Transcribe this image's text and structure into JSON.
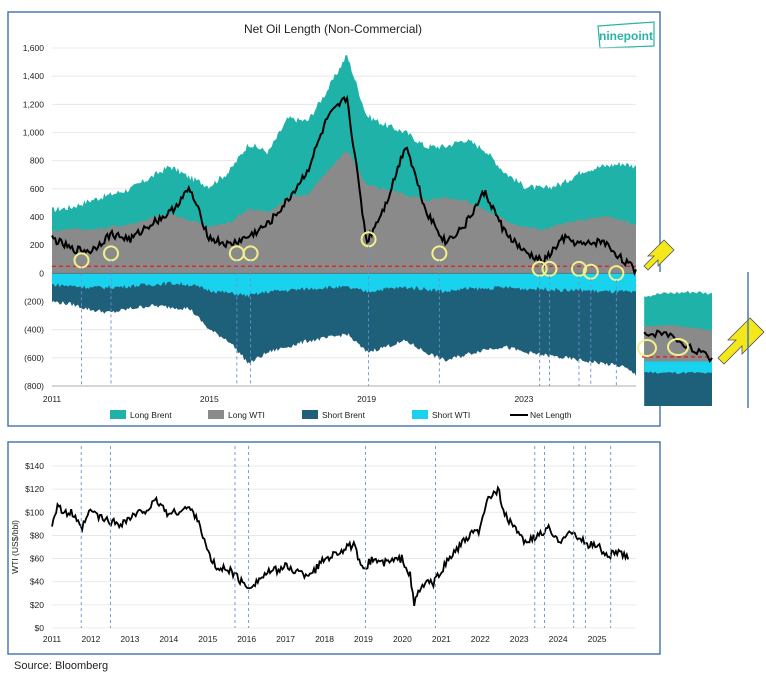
{
  "source": "Source: Bloomberg",
  "brand": {
    "logo_text": "ninepoint",
    "color": "#2bb3a8"
  },
  "colors": {
    "long_brent": "#1fb2a8",
    "long_wti": "#8a8a8a",
    "short_brent": "#1e5f7a",
    "short_wti": "#19d3ee",
    "net_length": "#000000",
    "highlight_circle": "#f2ef8c",
    "dashed_zero": "#d8262b",
    "panel_border": "#4a7ab0",
    "arrow": "#f4e81a"
  },
  "chart_data": [
    {
      "type": "area",
      "title": "Net Oil Length (Non-Commercial)",
      "xlabel": "",
      "ylabel": "",
      "x_range": [
        2011,
        2025.85
      ],
      "x_ticks": [
        2011,
        2015,
        2019,
        2023
      ],
      "ylim": [
        -800,
        1600
      ],
      "y_ticks": [
        -800,
        -600,
        -400,
        -200,
        0,
        200,
        400,
        600,
        800,
        1000,
        1200,
        1400,
        1600
      ],
      "y_tick_labels": [
        "(800)",
        "(600)",
        "(400)",
        "(200)",
        "0",
        "200",
        "400",
        "600",
        "800",
        "1,000",
        "1,200",
        "1,400",
        "1,600"
      ],
      "zero_line_value": 50,
      "legend": [
        "Long Brent",
        "Long WTI",
        "Short Brent",
        "Short WTI",
        "Net Length"
      ],
      "x": [
        2011.0,
        2011.5,
        2012.0,
        2012.5,
        2013.0,
        2013.5,
        2014.0,
        2014.5,
        2015.0,
        2015.5,
        2016.0,
        2016.5,
        2017.0,
        2017.5,
        2018.0,
        2018.5,
        2019.0,
        2019.5,
        2020.0,
        2020.5,
        2021.0,
        2021.5,
        2022.0,
        2022.5,
        2023.0,
        2023.5,
        2024.0,
        2024.5,
        2025.0,
        2025.5,
        2025.85
      ],
      "series": [
        {
          "name": "Long Brent",
          "values": [
            450,
            470,
            520,
            560,
            600,
            680,
            760,
            680,
            620,
            720,
            920,
            860,
            1100,
            1080,
            1300,
            1550,
            1120,
            1050,
            1000,
            900,
            900,
            950,
            880,
            720,
            620,
            600,
            640,
            730,
            760,
            780,
            760
          ]
        },
        {
          "name": "Long WTI",
          "values": [
            300,
            320,
            310,
            330,
            350,
            390,
            420,
            380,
            330,
            360,
            460,
            430,
            540,
            560,
            720,
            880,
            620,
            600,
            560,
            520,
            540,
            520,
            450,
            380,
            330,
            310,
            350,
            380,
            400,
            380,
            340
          ]
        },
        {
          "name": "Short Brent",
          "values": [
            -200,
            -220,
            -260,
            -280,
            -250,
            -230,
            -240,
            -250,
            -400,
            -480,
            -640,
            -560,
            -520,
            -480,
            -460,
            -430,
            -560,
            -520,
            -480,
            -560,
            -620,
            -580,
            -540,
            -520,
            -560,
            -580,
            -600,
            -620,
            -640,
            -660,
            -720
          ]
        },
        {
          "name": "Short WTI",
          "values": [
            -80,
            -90,
            -100,
            -100,
            -90,
            -80,
            -70,
            -80,
            -120,
            -140,
            -160,
            -130,
            -120,
            -110,
            -100,
            -100,
            -130,
            -110,
            -100,
            -110,
            -130,
            -110,
            -110,
            -100,
            -110,
            -110,
            -120,
            -120,
            -130,
            -130,
            -140
          ]
        },
        {
          "name": "Net Length",
          "values": [
            250,
            170,
            160,
            280,
            240,
            350,
            430,
            600,
            250,
            200,
            260,
            350,
            520,
            730,
            1100,
            1250,
            220,
            500,
            920,
            450,
            220,
            340,
            580,
            300,
            150,
            80,
            250,
            200,
            230,
            100,
            20
          ]
        }
      ],
      "circled_lows": [
        {
          "x": 2011.75,
          "y": 120
        },
        {
          "x": 2012.5,
          "y": 170
        },
        {
          "x": 2015.7,
          "y": 170
        },
        {
          "x": 2016.05,
          "y": 170
        },
        {
          "x": 2019.05,
          "y": 270
        },
        {
          "x": 2020.85,
          "y": 170
        },
        {
          "x": 2023.4,
          "y": 60
        },
        {
          "x": 2023.65,
          "y": 60
        },
        {
          "x": 2024.4,
          "y": 60
        },
        {
          "x": 2024.7,
          "y": 40
        },
        {
          "x": 2025.35,
          "y": 30
        }
      ]
    },
    {
      "type": "line",
      "title": "",
      "xlabel": "",
      "ylabel": "WTI (US$/bbl)",
      "x_ticks": [
        2011,
        2012,
        2013,
        2014,
        2015,
        2016,
        2017,
        2018,
        2019,
        2020,
        2021,
        2022,
        2023,
        2024,
        2025
      ],
      "x_range": [
        2011,
        2026
      ],
      "ylim": [
        0,
        140
      ],
      "y_ticks": [
        0,
        20,
        40,
        60,
        80,
        100,
        120,
        140
      ],
      "y_tick_labels": [
        "$0",
        "$20",
        "$40",
        "$60",
        "$80",
        "$100",
        "$120",
        "$140"
      ],
      "series": [
        {
          "name": "WTI",
          "x": [
            2011.0,
            2011.15,
            2011.3,
            2011.5,
            2011.75,
            2012.0,
            2012.25,
            2012.5,
            2012.75,
            2013.0,
            2013.5,
            2013.7,
            2014.0,
            2014.5,
            2014.75,
            2015.0,
            2015.25,
            2015.5,
            2015.75,
            2016.0,
            2016.25,
            2016.5,
            2016.75,
            2017.0,
            2017.5,
            2017.75,
            2018.0,
            2018.5,
            2018.75,
            2018.95,
            2019.25,
            2019.5,
            2019.75,
            2020.0,
            2020.2,
            2020.3,
            2020.4,
            2020.6,
            2020.8,
            2021.0,
            2021.25,
            2021.5,
            2021.75,
            2022.0,
            2022.2,
            2022.45,
            2022.7,
            2022.9,
            2023.0,
            2023.25,
            2023.5,
            2023.75,
            2024.0,
            2024.25,
            2024.5,
            2024.75,
            2025.0,
            2025.25,
            2025.5,
            2025.8
          ],
          "values": [
            90,
            108,
            98,
            100,
            85,
            102,
            95,
            92,
            90,
            95,
            104,
            110,
            98,
            104,
            95,
            65,
            50,
            52,
            44,
            35,
            40,
            47,
            50,
            53,
            46,
            50,
            60,
            68,
            72,
            50,
            60,
            56,
            58,
            60,
            45,
            20,
            30,
            40,
            38,
            50,
            62,
            72,
            80,
            85,
            112,
            120,
            92,
            88,
            78,
            75,
            80,
            86,
            74,
            84,
            78,
            72,
            72,
            62,
            66,
            60
          ]
        }
      ]
    }
  ]
}
